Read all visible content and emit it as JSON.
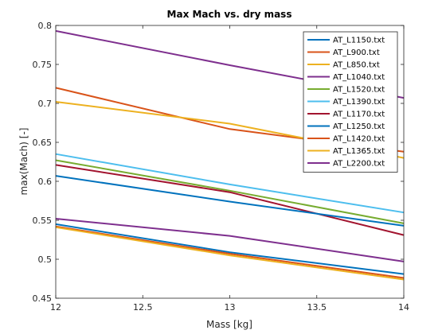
{
  "chart_data": {
    "type": "line",
    "title": "Max Mach vs. dry mass",
    "xlabel": "Mass [kg]",
    "ylabel": "max(Mach) [-]",
    "xlim": [
      12,
      14
    ],
    "ylim": [
      0.45,
      0.8
    ],
    "x": [
      12,
      13,
      14
    ],
    "xticks": [
      "12",
      "12.5",
      "13",
      "13.5",
      "14"
    ],
    "yticks": [
      "0.45",
      "0.5",
      "0.55",
      "0.6",
      "0.65",
      "0.7",
      "0.75",
      "0.8"
    ],
    "grid": false,
    "legend_position": "top-right",
    "series": [
      {
        "name": "AT_L1150.txt",
        "color": "#0072BD",
        "values": [
          0.545,
          0.509,
          0.481
        ]
      },
      {
        "name": "AT_L900.txt",
        "color": "#D95319",
        "values": [
          0.72,
          0.667,
          0.638
        ]
      },
      {
        "name": "AT_L850.txt",
        "color": "#EDB120",
        "values": [
          0.702,
          0.674,
          0.63
        ]
      },
      {
        "name": "AT_L1040.txt",
        "color": "#7E2F8E",
        "values": [
          0.793,
          0.749,
          0.707
        ]
      },
      {
        "name": "AT_L1520.txt",
        "color": "#77AC30",
        "values": [
          0.627,
          0.588,
          0.546
        ]
      },
      {
        "name": "AT_L1390.txt",
        "color": "#4DBEEE",
        "values": [
          0.635,
          0.596,
          0.56
        ]
      },
      {
        "name": "AT_L1170.txt",
        "color": "#A2142F",
        "values": [
          0.621,
          0.586,
          0.531
        ]
      },
      {
        "name": "AT_L1250.txt",
        "color": "#0072BD",
        "values": [
          0.607,
          0.574,
          0.543
        ]
      },
      {
        "name": "AT_L1420.txt",
        "color": "#D95319",
        "values": [
          0.542,
          0.507,
          0.476
        ]
      },
      {
        "name": "AT_L1365.txt",
        "color": "#EDB120",
        "values": [
          0.541,
          0.505,
          0.474
        ]
      },
      {
        "name": "AT_L2200.txt",
        "color": "#7E2F8E",
        "values": [
          0.552,
          0.53,
          0.497
        ]
      }
    ]
  }
}
